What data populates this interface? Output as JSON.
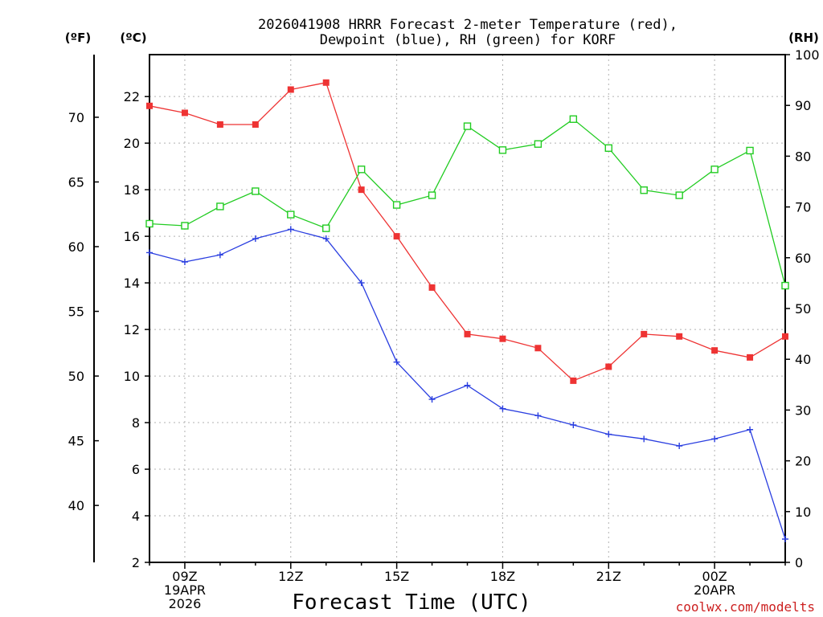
{
  "chart_data": {
    "type": "line",
    "title_line1": "2026041908 HRRR Forecast 2-meter Temperature (red),",
    "title_line2": "Dewpoint (blue), RH (green) for KORF",
    "xlabel": "Forecast Time (UTC)",
    "credit": "coolwx.com/modelts",
    "units": {
      "fahrenheit": "(ºF)",
      "celsius": "(ºC)",
      "rh": "(RH)"
    },
    "x_hours": [
      8,
      9,
      10,
      11,
      12,
      13,
      14,
      15,
      16,
      17,
      18,
      19,
      20,
      21,
      22,
      23,
      24,
      25,
      26
    ],
    "xlim": [
      8,
      26
    ],
    "x_ticks": [
      {
        "hour": 9,
        "lines": [
          "09Z",
          "19APR",
          "2026"
        ]
      },
      {
        "hour": 12,
        "lines": [
          "12Z"
        ]
      },
      {
        "hour": 15,
        "lines": [
          "15Z"
        ]
      },
      {
        "hour": 18,
        "lines": [
          "18Z"
        ]
      },
      {
        "hour": 21,
        "lines": [
          "21Z"
        ]
      },
      {
        "hour": 24,
        "lines": [
          "00Z",
          "20APR"
        ]
      }
    ],
    "ylim_c": [
      2,
      23.8
    ],
    "y_ticks_c": [
      2,
      4,
      6,
      8,
      10,
      12,
      14,
      16,
      18,
      20,
      22
    ],
    "y_ticks_f": [
      40,
      45,
      50,
      55,
      60,
      65,
      70
    ],
    "ylim_rh": [
      0,
      100
    ],
    "y_ticks_rh": [
      0,
      10,
      20,
      30,
      40,
      50,
      60,
      70,
      80,
      90,
      100
    ],
    "series": [
      {
        "name": "Temperature",
        "axis": "c",
        "color": "#ee3333",
        "marker": "filled-square",
        "values": [
          21.6,
          21.3,
          20.8,
          20.8,
          22.3,
          22.6,
          18.0,
          16.0,
          13.8,
          11.8,
          11.6,
          11.2,
          9.8,
          10.4,
          11.8,
          11.7,
          11.1,
          10.8,
          11.7
        ]
      },
      {
        "name": "Dewpoint",
        "axis": "c",
        "color": "#2a3ee0",
        "marker": "plus",
        "values": [
          15.3,
          14.9,
          15.2,
          15.9,
          16.3,
          15.9,
          14.0,
          10.6,
          9.0,
          9.6,
          8.6,
          8.3,
          7.9,
          7.5,
          7.3,
          7.0,
          7.3,
          7.7,
          3.0
        ]
      },
      {
        "name": "RH",
        "axis": "rh",
        "color": "#22cc22",
        "marker": "open-square",
        "values": [
          66.7,
          66.3,
          70.1,
          73.1,
          68.5,
          65.8,
          77.4,
          70.4,
          72.3,
          85.9,
          81.2,
          82.4,
          87.3,
          81.6,
          73.3,
          72.3,
          77.4,
          81.1,
          54.5
        ]
      }
    ]
  }
}
